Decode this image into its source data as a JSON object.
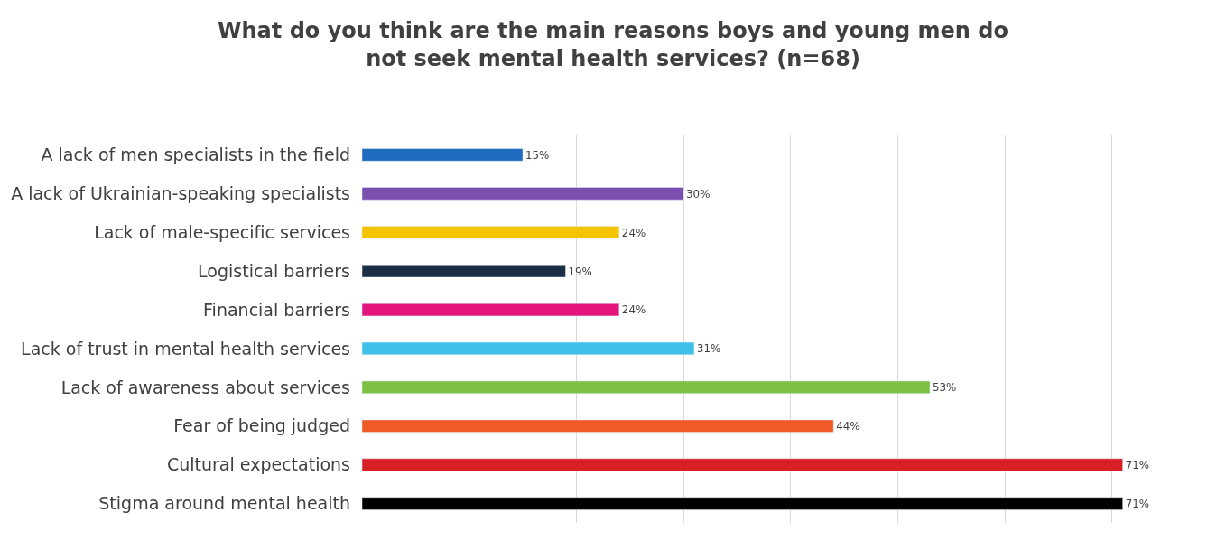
{
  "chart_data": {
    "type": "bar",
    "orientation": "horizontal",
    "title": "What do you think are the main reasons boys and young men do not seek mental health services? (n=68)",
    "categories": [
      "A lack of men specialists in the field",
      "A lack of Ukrainian-speaking specialists",
      "Lack of male-specific services",
      "Logistical barriers",
      "Financial barriers",
      "Lack of trust in mental health services",
      "Lack of awareness about services",
      "Fear of being judged",
      "Cultural expectations",
      "Stigma around mental health"
    ],
    "values": [
      15,
      30,
      24,
      19,
      24,
      31,
      53,
      44,
      71,
      71
    ],
    "colors": [
      "#1f6bbf",
      "#7a4fb0",
      "#f5c400",
      "#1c2e44",
      "#e4147f",
      "#3fc0ea",
      "#7cc142",
      "#ef5a28",
      "#d91f26",
      "#000000"
    ],
    "value_labels": [
      "15%",
      "30%",
      "24%",
      "19%",
      "24%",
      "31%",
      "53%",
      "44%",
      "71%",
      "71%"
    ],
    "grid": "x",
    "tick_labels": "y",
    "legend": false
  }
}
